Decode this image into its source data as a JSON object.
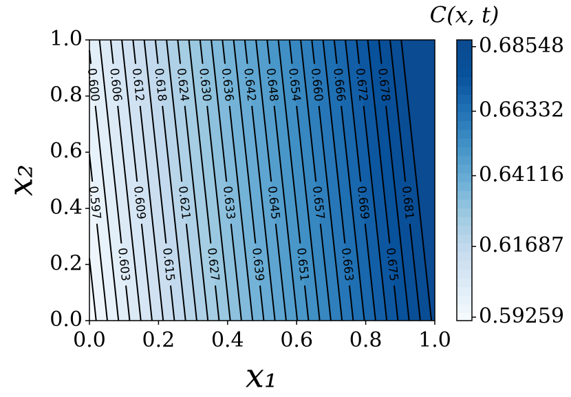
{
  "chart_data": {
    "type": "contour",
    "xlabel": "x₁",
    "ylabel": "x₂",
    "colorbar_label": "C(x, t)",
    "xlim": [
      0,
      1
    ],
    "ylim": [
      0,
      1
    ],
    "xticks": [
      {
        "value": 0,
        "label": "0.0"
      },
      {
        "value": 0.2,
        "label": "0.2"
      },
      {
        "value": 0.4,
        "label": "0.4"
      },
      {
        "value": 0.6,
        "label": "0.6"
      },
      {
        "value": 0.8,
        "label": "0.8"
      },
      {
        "value": 1,
        "label": "1.0"
      }
    ],
    "yticks": [
      {
        "value": 0,
        "label": "0.0"
      },
      {
        "value": 0.2,
        "label": "0.2"
      },
      {
        "value": 0.4,
        "label": "0.4"
      },
      {
        "value": 0.6,
        "label": "0.6"
      },
      {
        "value": 0.8,
        "label": "0.8"
      },
      {
        "value": 1,
        "label": "1.0"
      }
    ],
    "surface": {
      "intercept": 0.5922,
      "slope_x1": 0.0927,
      "slope_x2": 0.0081
    },
    "levels": [
      0.594,
      0.597,
      0.6,
      0.603,
      0.606,
      0.609,
      0.612,
      0.615,
      0.618,
      0.621,
      0.624,
      0.627,
      0.63,
      0.633,
      0.636,
      0.639,
      0.642,
      0.645,
      0.648,
      0.651,
      0.654,
      0.657,
      0.66,
      0.663,
      0.666,
      0.669,
      0.672,
      0.675,
      0.678,
      0.681,
      0.684
    ],
    "level_labels": [
      null,
      "0.597",
      "0.600",
      "0.603",
      "0.606",
      "0.609",
      "0.612",
      "0.615",
      "0.618",
      "0.621",
      "0.624",
      "0.627",
      "0.630",
      "0.633",
      "0.636",
      "0.639",
      "0.642",
      "0.645",
      "0.648",
      "0.651",
      "0.654",
      "0.657",
      "0.660",
      "0.663",
      "0.666",
      "0.669",
      "0.672",
      "0.675",
      "0.678",
      "0.681",
      null
    ],
    "clim": [
      0.5914,
      0.6878
    ],
    "colorbar_ticks": [
      0.59259,
      0.61687,
      0.64116,
      0.66332,
      0.68548
    ],
    "colormap": [
      "#f7fbff",
      "#deebf7",
      "#c6dbef",
      "#9ecae1",
      "#6baed6",
      "#4292c6",
      "#2171b5",
      "#08519c",
      "#0a4a90"
    ],
    "line_color": "#000000"
  }
}
